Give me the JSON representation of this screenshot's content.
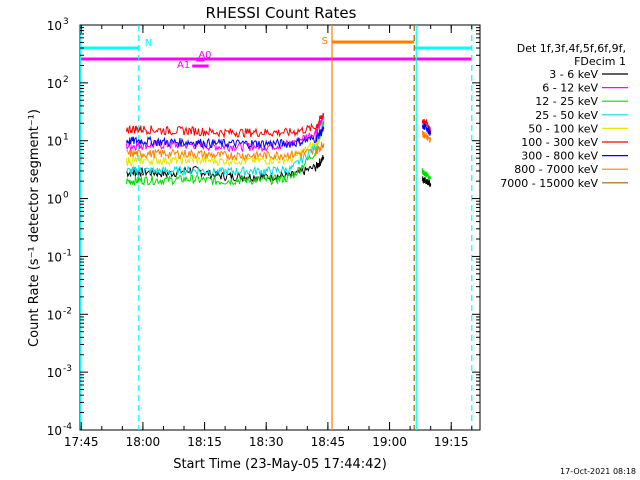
{
  "chart_data": {
    "type": "line",
    "title": "RHESSI Count Rates",
    "xlabel": "Start Time (23-May-05 17:44:42)",
    "ylabel": "Count Rate (s⁻¹ detector segment⁻¹)",
    "y_scale": "log",
    "ylim": [
      0.0001,
      1000
    ],
    "y_ticks": [
      0.0001,
      0.001,
      0.01,
      0.1,
      1,
      10,
      100,
      1000
    ],
    "y_tick_exponents": [
      "-4",
      "-3",
      "-2",
      "-1",
      "0",
      "1",
      "2",
      "3"
    ],
    "xlim": [
      "17:44:42",
      "19:22:00"
    ],
    "x_ticks": [
      "17:45",
      "18:00",
      "18:15",
      "18:30",
      "18:45",
      "19:00",
      "19:15"
    ],
    "legend_header": [
      "Det 1f,3f,4f,5f,6f,9f,",
      "FDecim 1"
    ],
    "legend_placement": "right",
    "series": [
      {
        "name": "3 - 6 keV",
        "color": "#000000",
        "x": [
          "17:56",
          "18:00",
          "18:06",
          "18:12",
          "18:18",
          "18:24",
          "18:30",
          "18:36",
          "18:42",
          "18:44"
        ],
        "values": [
          2.8,
          2.9,
          2.7,
          3.2,
          2.5,
          2.4,
          2.4,
          2.5,
          3.5,
          5.2
        ]
      },
      {
        "name": "6 - 12 keV",
        "color": "#ff00ff",
        "x": [
          "17:56",
          "18:00",
          "18:06",
          "18:12",
          "18:18",
          "18:24",
          "18:30",
          "18:36",
          "18:42",
          "18:44"
        ],
        "values": [
          8,
          8.5,
          8.5,
          8.5,
          8.0,
          8.0,
          8.0,
          9,
          14,
          25
        ]
      },
      {
        "name": "12 - 25 keV",
        "color": "#00dd00",
        "x": [
          "17:56",
          "18:00",
          "18:06",
          "18:12",
          "18:18",
          "18:24",
          "18:30",
          "18:36",
          "18:42",
          "18:44"
        ],
        "values": [
          2.0,
          2.1,
          2.1,
          2.2,
          2.0,
          2.1,
          2.1,
          2.3,
          6.5,
          22
        ]
      },
      {
        "name": "25 - 50 keV",
        "color": "#00dddd",
        "x": [
          "17:56",
          "18:00",
          "18:06",
          "18:12",
          "18:18",
          "18:24",
          "18:30",
          "18:36",
          "18:42",
          "18:44"
        ],
        "values": [
          3.0,
          3.1,
          3.0,
          3.1,
          2.9,
          3.0,
          3.0,
          3.2,
          8,
          18
        ]
      },
      {
        "name": "50 - 100 keV",
        "color": "#e6e600",
        "x": [
          "17:56",
          "18:00",
          "18:06",
          "18:12",
          "18:18",
          "18:24",
          "18:30",
          "18:36",
          "18:42",
          "18:44"
        ],
        "values": [
          4.5,
          4.6,
          4.6,
          4.7,
          4.5,
          4.6,
          4.6,
          4.8,
          9,
          15
        ]
      },
      {
        "name": "100 - 300 keV",
        "color": "#ff0000",
        "x": [
          "17:56",
          "18:00",
          "18:06",
          "18:12",
          "18:18",
          "18:24",
          "18:30",
          "18:36",
          "18:42",
          "18:44"
        ],
        "values": [
          16,
          16,
          15,
          15,
          14,
          14,
          14,
          14,
          17,
          30
        ]
      },
      {
        "name": "300 - 800 keV",
        "color": "#0000ff",
        "x": [
          "17:56",
          "18:00",
          "18:06",
          "18:12",
          "18:18",
          "18:24",
          "18:30",
          "18:36",
          "18:42",
          "18:44"
        ],
        "values": [
          10,
          10,
          9.5,
          9.5,
          9,
          9,
          9,
          9,
          11,
          16
        ]
      },
      {
        "name": "800 - 7000 keV",
        "color": "#ff8000",
        "x": [
          "17:56",
          "18:00",
          "18:06",
          "18:12",
          "18:18",
          "18:24",
          "18:30",
          "18:36",
          "18:42",
          "18:44"
        ],
        "values": [
          6,
          6,
          6,
          6,
          5.6,
          5.6,
          5.6,
          5.8,
          6.5,
          9
        ]
      },
      {
        "name": "7000 - 15000 keV",
        "color": "#996600",
        "x": [],
        "values": []
      }
    ],
    "second_segment": {
      "x": [
        "19:08",
        "19:09",
        "19:10"
      ],
      "series": {
        "3 - 6 keV": [
          2.2,
          2.0,
          1.8
        ],
        "100 - 300 keV": [
          22,
          20,
          15
        ],
        "300 - 800 keV": [
          18,
          17,
          13
        ],
        "800 - 7000 keV": [
          13,
          12,
          10
        ],
        "12 - 25 keV": [
          3,
          2.6,
          2.2
        ]
      }
    },
    "flag_bars": [
      {
        "label": "N",
        "color": "#00ffff",
        "segments": [
          [
            "17:44:42",
            "17:59"
          ],
          [
            "19:06",
            "19:20"
          ]
        ]
      },
      {
        "label": "",
        "color": "#ff00ff",
        "segments": [
          [
            "17:44:42",
            "19:20"
          ]
        ]
      },
      {
        "label": "A0",
        "color": "#ff00ff",
        "segments": [
          [
            "18:13",
            "18:15"
          ]
        ]
      },
      {
        "label": "A1",
        "color": "#ff00ff",
        "segments": [
          [
            "18:12",
            "18:16"
          ]
        ]
      },
      {
        "label": "S",
        "color": "#ff8000",
        "segments": [
          [
            "18:46",
            "19:06"
          ]
        ]
      }
    ],
    "vertical_markers": [
      {
        "color": "#00ffff",
        "style": "solid",
        "x": "17:44:50"
      },
      {
        "color": "#00ffff",
        "style": "dashed",
        "x": "17:59"
      },
      {
        "color": "#ff8000",
        "style": "solid",
        "x": "18:46"
      },
      {
        "color": "#996600",
        "style": "dashed",
        "x": "19:06"
      },
      {
        "color": "#00ffff",
        "style": "solid",
        "x": "19:06:30"
      },
      {
        "color": "#00ffff",
        "style": "dashed",
        "x": "19:20"
      }
    ],
    "timestamp": "17-Oct-2021 08:18",
    "grid": false
  }
}
